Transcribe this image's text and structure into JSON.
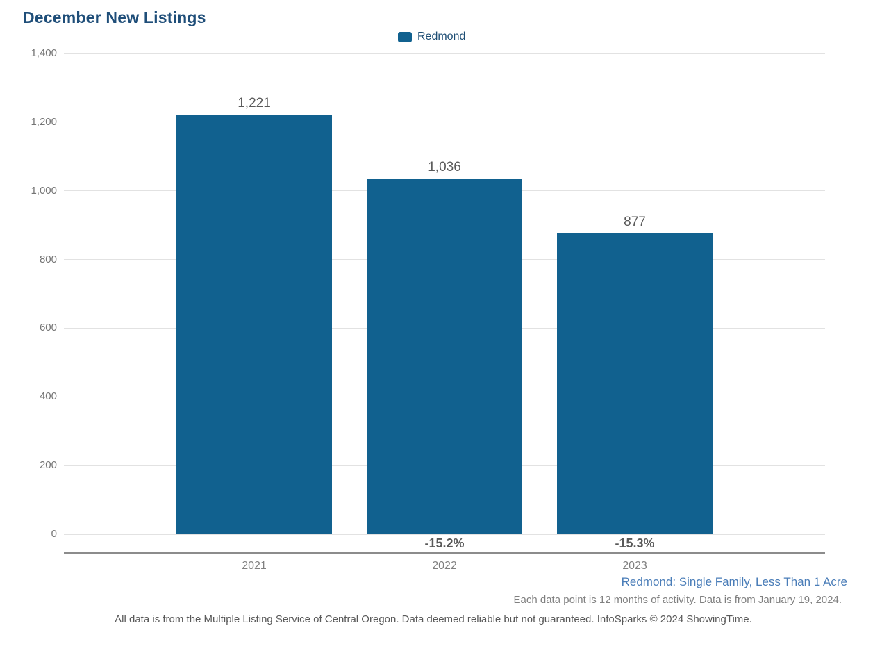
{
  "header": {
    "title": "December New Listings"
  },
  "legend": {
    "label": "Redmond"
  },
  "chart_data": {
    "type": "bar",
    "title": "December New Listings",
    "series_name": "Redmond",
    "categories": [
      "2021",
      "2022",
      "2023"
    ],
    "values": [
      1221,
      1036,
      877
    ],
    "value_labels": [
      "1,221",
      "1,036",
      "877"
    ],
    "pct_change": [
      null,
      "-15.2%",
      "-15.3%"
    ],
    "xlabel": "",
    "ylabel": "",
    "ylim": [
      0,
      1400
    ],
    "yticks": [
      {
        "v": 0,
        "label": "0"
      },
      {
        "v": 200,
        "label": "200"
      },
      {
        "v": 400,
        "label": "400"
      },
      {
        "v": 600,
        "label": "600"
      },
      {
        "v": 800,
        "label": "800"
      },
      {
        "v": 1000,
        "label": "1,000"
      },
      {
        "v": 1200,
        "label": "1,200"
      },
      {
        "v": 1400,
        "label": "1,400"
      }
    ],
    "grid": true,
    "legend_position": "top-center"
  },
  "colors": {
    "bar_color": "#11618f",
    "title_color": "#1f4e79",
    "legend_text_color": "#1d4d74",
    "gridline_color": "#e2e2e2",
    "axis_line_color": "#8c8c8c",
    "value_label_color": "#595959",
    "pct_label_color": "#595959",
    "tick_label_color": "#757575",
    "year_label_color": "#808080",
    "footnote_blue": "#4a7db8",
    "footnote_gray": "#808080",
    "footnote_dark": "#595959"
  },
  "footnotes": {
    "context": "Redmond: Single Family, Less Than 1 Acre",
    "data_note": "Each data point is 12 months of activity. Data is from January 19, 2024.",
    "disclaimer": "All data is from the Multiple Listing Service of Central Oregon. Data deemed reliable but not guaranteed. InfoSparks © 2024 ShowingTime."
  }
}
